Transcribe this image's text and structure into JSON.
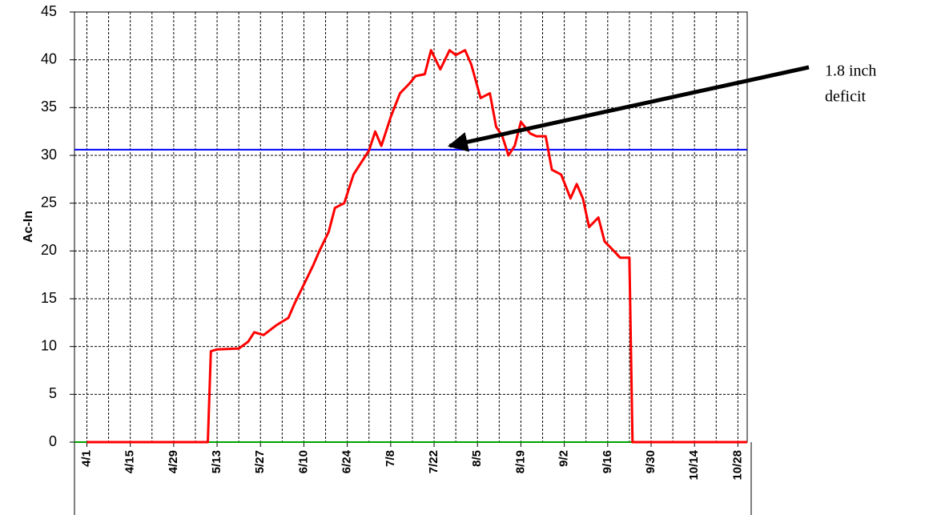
{
  "chart_data": {
    "type": "line",
    "ylabel": "Ac-In",
    "x": [
      "4/1",
      "5/9",
      "5/10",
      "5/11",
      "5/13",
      "5/20",
      "5/23",
      "5/25",
      "5/28",
      "6/1",
      "6/5",
      "6/7",
      "6/10",
      "6/13",
      "6/15",
      "6/18",
      "6/20",
      "6/23",
      "6/26",
      "6/28",
      "7/1",
      "7/3",
      "7/5",
      "7/8",
      "7/11",
      "7/14",
      "7/16",
      "7/19",
      "7/21",
      "7/24",
      "7/27",
      "7/29",
      "8/1",
      "8/3",
      "8/6",
      "8/9",
      "8/11",
      "8/13",
      "8/15",
      "8/17",
      "8/19",
      "8/22",
      "8/24",
      "8/27",
      "8/29",
      "9/1",
      "9/4",
      "9/6",
      "9/8",
      "9/10",
      "9/13",
      "9/15",
      "9/18",
      "9/20",
      "9/23",
      "9/24",
      "10/31"
    ],
    "series": [
      {
        "color": "#ff0000",
        "values": [
          0,
          0,
          0,
          9.5,
          9.7,
          9.8,
          10.5,
          11.5,
          11.2,
          12.2,
          13,
          14.5,
          16.5,
          18.5,
          20,
          22,
          24.5,
          25,
          28,
          29,
          30.5,
          32.5,
          31,
          34,
          36.5,
          37.5,
          38.3,
          38.5,
          41,
          39,
          41,
          40.5,
          41,
          39.5,
          36,
          36.5,
          33,
          32,
          30,
          31,
          33.5,
          32.3,
          32,
          32,
          28.5,
          28,
          25.5,
          27,
          25.5,
          22.5,
          23.5,
          21,
          20,
          19.3,
          19.3,
          0,
          0
        ]
      }
    ],
    "reference_lines": [
      {
        "value": 30.6,
        "color": "#0000ff"
      },
      {
        "value": 0,
        "color": "#00a000"
      }
    ],
    "xlim": [
      "3/28",
      "10/31"
    ],
    "xticks": [
      "4/1",
      "4/15",
      "4/29",
      "5/13",
      "5/27",
      "6/10",
      "6/24",
      "7/8",
      "7/22",
      "8/5",
      "8/19",
      "9/2",
      "9/16",
      "9/30",
      "10/14",
      "10/28"
    ],
    "x_minor_ticks": [
      "4/8",
      "4/22",
      "5/6",
      "5/20",
      "6/3",
      "6/17",
      "7/1",
      "7/15",
      "7/29",
      "8/12",
      "8/26",
      "9/9",
      "9/23",
      "10/7",
      "10/21"
    ],
    "ylim": [
      0,
      45
    ],
    "yticks": [
      0,
      5,
      10,
      15,
      20,
      25,
      30,
      35,
      40,
      45
    ],
    "grid": true,
    "annotation": {
      "lines": [
        "1.8 inch",
        "deficit"
      ],
      "target": {
        "x": "7/27",
        "y": 31
      }
    }
  }
}
